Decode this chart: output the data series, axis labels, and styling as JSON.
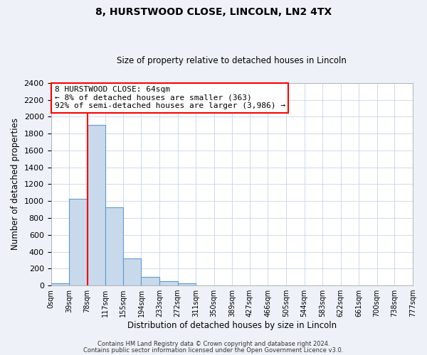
{
  "title": "8, HURSTWOOD CLOSE, LINCOLN, LN2 4TX",
  "subtitle": "Size of property relative to detached houses in Lincoln",
  "xlabel": "Distribution of detached houses by size in Lincoln",
  "ylabel": "Number of detached properties",
  "bin_edges": [
    0,
    39,
    78,
    117,
    155,
    194,
    233,
    272,
    311,
    350,
    389,
    427,
    466,
    505,
    544,
    583,
    622,
    661,
    700,
    738,
    777
  ],
  "bar_heights": [
    25,
    1025,
    1900,
    930,
    320,
    105,
    50,
    30,
    0,
    0,
    0,
    0,
    0,
    0,
    0,
    0,
    0,
    0,
    0,
    0
  ],
  "bar_color": "#c9d9ec",
  "bar_edge_color": "#5b9bd5",
  "red_line_x": 78,
  "ylim": [
    0,
    2400
  ],
  "yticks": [
    0,
    200,
    400,
    600,
    800,
    1000,
    1200,
    1400,
    1600,
    1800,
    2000,
    2200,
    2400
  ],
  "xtick_labels": [
    "0sqm",
    "39sqm",
    "78sqm",
    "117sqm",
    "155sqm",
    "194sqm",
    "233sqm",
    "272sqm",
    "311sqm",
    "350sqm",
    "389sqm",
    "427sqm",
    "466sqm",
    "505sqm",
    "544sqm",
    "583sqm",
    "622sqm",
    "661sqm",
    "700sqm",
    "738sqm",
    "777sqm"
  ],
  "annotation_line1": "8 HURSTWOOD CLOSE: 64sqm",
  "annotation_line2": "← 8% of detached houses are smaller (363)",
  "annotation_line3": "92% of semi-detached houses are larger (3,986) →",
  "footer1": "Contains HM Land Registry data © Crown copyright and database right 2024.",
  "footer2": "Contains public sector information licensed under the Open Government Licence v3.0.",
  "background_color": "#eef2f8",
  "plot_bg_color": "#ffffff",
  "grid_color": "#c8d4e8"
}
